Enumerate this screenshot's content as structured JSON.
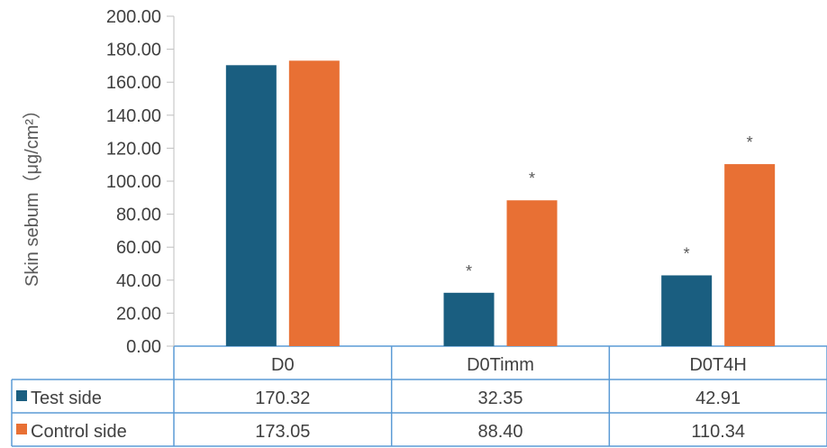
{
  "chart_data": {
    "type": "bar",
    "ylabel": "Skin sebum（μg/cm²）",
    "ylim": [
      0,
      200
    ],
    "y_ticks": [
      "0.00",
      "20.00",
      "40.00",
      "60.00",
      "80.00",
      "100.00",
      "120.00",
      "140.00",
      "160.00",
      "180.00",
      "200.00"
    ],
    "categories": [
      "D0",
      "D0Timm",
      "D0T4H"
    ],
    "series": [
      {
        "name": "Test side",
        "color": "#1a5e80",
        "values": [
          170.32,
          32.35,
          42.91
        ],
        "labels": [
          "170.32",
          "32.35",
          "42.91"
        ],
        "significance": [
          "",
          "*",
          "*"
        ]
      },
      {
        "name": "Control side",
        "color": "#e87034",
        "values": [
          173.05,
          88.4,
          110.34
        ],
        "labels": [
          "173.05",
          "88.40",
          "110.34"
        ],
        "significance": [
          "",
          "*",
          "*"
        ]
      }
    ],
    "grid": false,
    "legend": "data table"
  }
}
